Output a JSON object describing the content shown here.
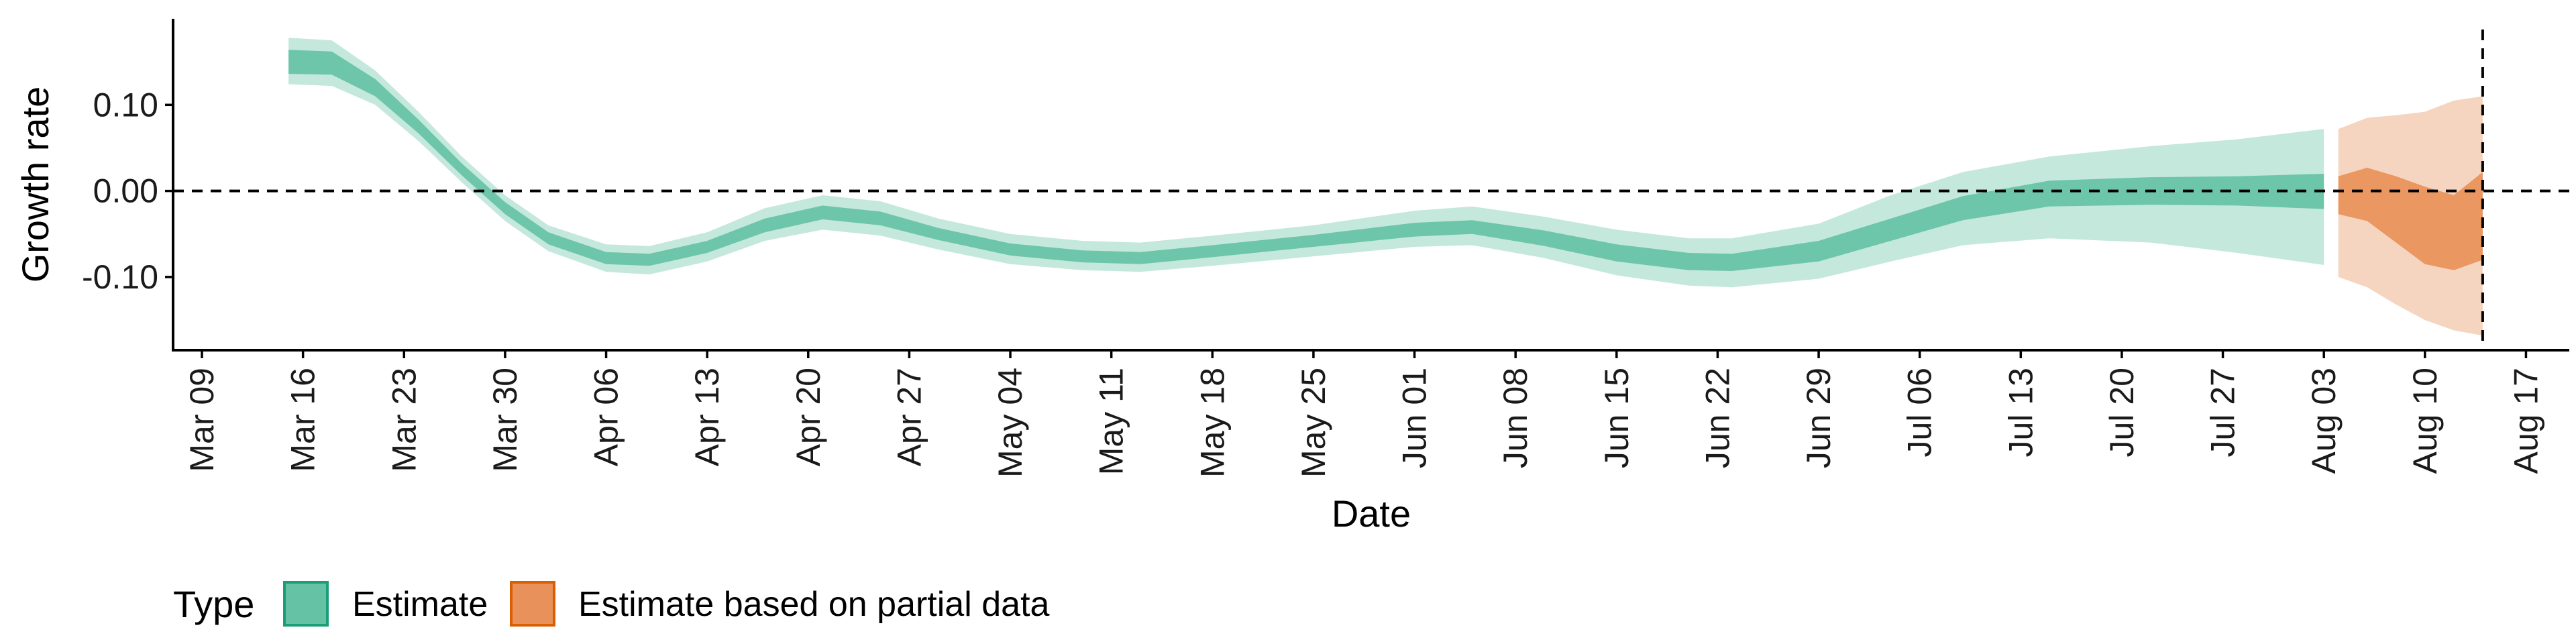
{
  "chart_data": {
    "type": "area",
    "xlabel": "Date",
    "ylabel": "Growth rate",
    "x_start_date": "2020-03-09",
    "x_ticks": [
      "Mar 09",
      "Mar 16",
      "Mar 23",
      "Mar 30",
      "Apr 06",
      "Apr 13",
      "Apr 20",
      "Apr 27",
      "May 04",
      "May 11",
      "May 18",
      "May 25",
      "Jun 01",
      "Jun 08",
      "Jun 15",
      "Jun 22",
      "Jun 29",
      "Jul 06",
      "Jul 13",
      "Jul 20",
      "Jul 27",
      "Aug 03",
      "Aug 10",
      "Aug 17"
    ],
    "y_ticks": [
      {
        "value": 0.1,
        "label": "0.10"
      },
      {
        "value": 0.0,
        "label": "0.00"
      },
      {
        "value": -0.1,
        "label": "-0.10"
      }
    ],
    "ylim": [
      -0.185,
      0.2
    ],
    "xlim_dates": [
      "2020-03-07",
      "2020-08-20"
    ],
    "reference_lines": {
      "horizontal_y": 0,
      "vertical_date": "2020-08-14",
      "style": "dashed"
    },
    "legend": {
      "title": "Type",
      "position": "bottom-left",
      "entries": [
        {
          "label": "Estimate",
          "color": "#66C2A5"
        },
        {
          "label": "Estimate based on partial data",
          "color": "#E8915A"
        }
      ]
    },
    "series": [
      {
        "name": "Estimate",
        "fill_color": "#66C2A5",
        "points": [
          {
            "date": "2020-03-15",
            "median": 0.15,
            "lower50": 0.136,
            "upper50": 0.164,
            "lower90": 0.124,
            "upper90": 0.178
          },
          {
            "date": "2020-03-18",
            "median": 0.148,
            "lower50": 0.135,
            "upper50": 0.162,
            "lower90": 0.122,
            "upper90": 0.175
          },
          {
            "date": "2020-03-21",
            "median": 0.12,
            "lower50": 0.11,
            "upper50": 0.13,
            "lower90": 0.1,
            "upper90": 0.14
          },
          {
            "date": "2020-03-24",
            "median": 0.075,
            "lower50": 0.067,
            "upper50": 0.083,
            "lower90": 0.058,
            "upper90": 0.092
          },
          {
            "date": "2020-03-27",
            "median": 0.025,
            "lower50": 0.018,
            "upper50": 0.032,
            "lower90": 0.01,
            "upper90": 0.04
          },
          {
            "date": "2020-03-30",
            "median": -0.02,
            "lower50": -0.027,
            "upper50": -0.013,
            "lower90": -0.035,
            "upper90": -0.005
          },
          {
            "date": "2020-04-02",
            "median": -0.055,
            "lower50": -0.062,
            "upper50": -0.048,
            "lower90": -0.07,
            "upper90": -0.04
          },
          {
            "date": "2020-04-06",
            "median": -0.078,
            "lower50": -0.085,
            "upper50": -0.071,
            "lower90": -0.094,
            "upper90": -0.062
          },
          {
            "date": "2020-04-09",
            "median": -0.08,
            "lower50": -0.087,
            "upper50": -0.073,
            "lower90": -0.097,
            "upper90": -0.064
          },
          {
            "date": "2020-04-13",
            "median": -0.065,
            "lower50": -0.072,
            "upper50": -0.058,
            "lower90": -0.082,
            "upper90": -0.048
          },
          {
            "date": "2020-04-17",
            "median": -0.04,
            "lower50": -0.048,
            "upper50": -0.032,
            "lower90": -0.058,
            "upper90": -0.02
          },
          {
            "date": "2020-04-21",
            "median": -0.025,
            "lower50": -0.033,
            "upper50": -0.017,
            "lower90": -0.045,
            "upper90": -0.005
          },
          {
            "date": "2020-04-25",
            "median": -0.032,
            "lower50": -0.04,
            "upper50": -0.024,
            "lower90": -0.052,
            "upper90": -0.012
          },
          {
            "date": "2020-04-29",
            "median": -0.05,
            "lower50": -0.057,
            "upper50": -0.043,
            "lower90": -0.068,
            "upper90": -0.032
          },
          {
            "date": "2020-05-04",
            "median": -0.068,
            "lower50": -0.075,
            "upper50": -0.061,
            "lower90": -0.085,
            "upper90": -0.05
          },
          {
            "date": "2020-05-09",
            "median": -0.076,
            "lower50": -0.083,
            "upper50": -0.069,
            "lower90": -0.092,
            "upper90": -0.058
          },
          {
            "date": "2020-05-13",
            "median": -0.078,
            "lower50": -0.085,
            "upper50": -0.071,
            "lower90": -0.094,
            "upper90": -0.06
          },
          {
            "date": "2020-05-18",
            "median": -0.07,
            "lower50": -0.077,
            "upper50": -0.063,
            "lower90": -0.087,
            "upper90": -0.052
          },
          {
            "date": "2020-05-25",
            "median": -0.058,
            "lower50": -0.065,
            "upper50": -0.051,
            "lower90": -0.076,
            "upper90": -0.04
          },
          {
            "date": "2020-06-01",
            "median": -0.045,
            "lower50": -0.053,
            "upper50": -0.037,
            "lower90": -0.065,
            "upper90": -0.023
          },
          {
            "date": "2020-06-05",
            "median": -0.042,
            "lower50": -0.05,
            "upper50": -0.034,
            "lower90": -0.063,
            "upper90": -0.018
          },
          {
            "date": "2020-06-10",
            "median": -0.055,
            "lower50": -0.064,
            "upper50": -0.046,
            "lower90": -0.078,
            "upper90": -0.03
          },
          {
            "date": "2020-06-15",
            "median": -0.072,
            "lower50": -0.082,
            "upper50": -0.062,
            "lower90": -0.098,
            "upper90": -0.045
          },
          {
            "date": "2020-06-20",
            "median": -0.082,
            "lower50": -0.092,
            "upper50": -0.072,
            "lower90": -0.11,
            "upper90": -0.055
          },
          {
            "date": "2020-06-23",
            "median": -0.083,
            "lower50": -0.093,
            "upper50": -0.073,
            "lower90": -0.112,
            "upper90": -0.055
          },
          {
            "date": "2020-06-29",
            "median": -0.07,
            "lower50": -0.082,
            "upper50": -0.058,
            "lower90": -0.102,
            "upper90": -0.038
          },
          {
            "date": "2020-07-04",
            "median": -0.045,
            "lower50": -0.058,
            "upper50": -0.032,
            "lower90": -0.082,
            "upper90": -0.005
          },
          {
            "date": "2020-07-09",
            "median": -0.02,
            "lower50": -0.034,
            "upper50": -0.006,
            "lower90": -0.063,
            "upper90": 0.022
          },
          {
            "date": "2020-07-15",
            "median": -0.003,
            "lower50": -0.018,
            "upper50": 0.012,
            "lower90": -0.055,
            "upper90": 0.04
          },
          {
            "date": "2020-07-22",
            "median": 0.0,
            "lower50": -0.016,
            "upper50": 0.016,
            "lower90": -0.06,
            "upper90": 0.052
          },
          {
            "date": "2020-07-28",
            "median": 0.0,
            "lower50": -0.017,
            "upper50": 0.017,
            "lower90": -0.072,
            "upper90": 0.06
          },
          {
            "date": "2020-08-03",
            "median": -0.002,
            "lower50": -0.021,
            "upper50": 0.02,
            "lower90": -0.086,
            "upper90": 0.072
          }
        ]
      },
      {
        "name": "Estimate based on partial data",
        "fill_color": "#E8915A",
        "points": [
          {
            "date": "2020-08-04",
            "median": -0.005,
            "lower50": -0.027,
            "upper50": 0.017,
            "lower90": -0.1,
            "upper90": 0.072
          },
          {
            "date": "2020-08-06",
            "median": -0.012,
            "lower50": -0.035,
            "upper50": 0.027,
            "lower90": -0.112,
            "upper90": 0.085
          },
          {
            "date": "2020-08-08",
            "median": -0.028,
            "lower50": -0.06,
            "upper50": 0.017,
            "lower90": -0.132,
            "upper90": 0.088
          },
          {
            "date": "2020-08-10",
            "median": -0.045,
            "lower50": -0.085,
            "upper50": 0.005,
            "lower90": -0.15,
            "upper90": 0.092
          },
          {
            "date": "2020-08-12",
            "median": -0.052,
            "lower50": -0.092,
            "upper50": -0.005,
            "lower90": -0.162,
            "upper90": 0.105
          },
          {
            "date": "2020-08-14",
            "median": -0.05,
            "lower50": -0.08,
            "upper50": 0.022,
            "lower90": -0.168,
            "upper90": 0.11
          }
        ]
      }
    ]
  }
}
